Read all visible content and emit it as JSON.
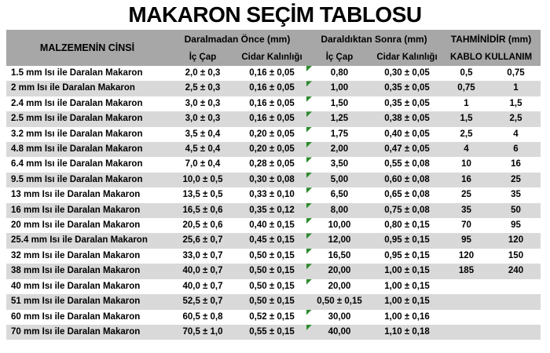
{
  "title": "MAKARON SEÇİM TABLOSU",
  "colors": {
    "header_bg": "#a7a7a7",
    "stripe_bg": "#d9d9d9",
    "flag_green": "#2d8c2d",
    "text": "#000000"
  },
  "header": {
    "material": "MALZEMENİN CİNSİ",
    "before": {
      "label": "Daralmadan Önce (mm)",
      "ic": "İç Çap",
      "cidar": "Cidar Kalınlığı"
    },
    "after": {
      "label": "Daraldıktan Sonra (mm)",
      "ic": "İç Çap",
      "cidar": "Cidar Kalınlığı"
    },
    "estimate": {
      "line1": "TAHMİNİDİR (mm)",
      "line2": "KABLO KULLANIM"
    }
  },
  "rows": [
    {
      "name": "1.5 mm Isı ile Daralan Makaron",
      "ic_once": "2,0 ± 0,3",
      "cidar_once": "0,16 ± 0,05",
      "ic_sonra": "0,80",
      "cidar_sonra": "0,30 ± 0,05",
      "kablo1": "0,5",
      "kablo2": "0,75",
      "marker": true
    },
    {
      "name": "2 mm Isı ile Daralan Makaron",
      "ic_once": "2,5 ± 0,3",
      "cidar_once": "0,16 ± 0,05",
      "ic_sonra": "1,00",
      "cidar_sonra": "0,35 ± 0,05",
      "kablo1": "0,75",
      "kablo2": "1",
      "marker": true
    },
    {
      "name": "2.4 mm Isı ile Daralan Makaron",
      "ic_once": "3,0 ± 0,3",
      "cidar_once": "0,16 ± 0,05",
      "ic_sonra": "1,50",
      "cidar_sonra": "0,35 ± 0,05",
      "kablo1": "1",
      "kablo2": "1,5",
      "marker": true
    },
    {
      "name": "2.5 mm Isı ile Daralan Makaron",
      "ic_once": "3,0 ± 0,3",
      "cidar_once": "0,16 ± 0,05",
      "ic_sonra": "1,25",
      "cidar_sonra": "0,38 ± 0,05",
      "kablo1": "1,5",
      "kablo2": "2,5",
      "marker": true
    },
    {
      "name": "3.2 mm Isı ile Daralan Makaron",
      "ic_once": "3,5 ± 0,4",
      "cidar_once": "0,20 ± 0,05",
      "ic_sonra": "1,75",
      "cidar_sonra": "0,40 ± 0,05",
      "kablo1": "2,5",
      "kablo2": "4",
      "marker": true
    },
    {
      "name": "4.8 mm Isı ile Daralan Makaron",
      "ic_once": "4,5 ± 0,4",
      "cidar_once": "0,20 ± 0,05",
      "ic_sonra": "2,00",
      "cidar_sonra": "0,47 ± 0,05",
      "kablo1": "4",
      "kablo2": "6",
      "marker": true
    },
    {
      "name": "6.4 mm Isı ile Daralan Makaron",
      "ic_once": "7,0 ± 0,4",
      "cidar_once": "0,28 ± 0,05",
      "ic_sonra": "3,50",
      "cidar_sonra": "0,55 ± 0,08",
      "kablo1": "10",
      "kablo2": "16",
      "marker": true
    },
    {
      "name": "9.5 mm Isı ile Daralan Makaron",
      "ic_once": "10,0 ± 0,5",
      "cidar_once": "0,30 ± 0,08",
      "ic_sonra": "5,00",
      "cidar_sonra": "0,60 ± 0,08",
      "kablo1": "16",
      "kablo2": "25",
      "marker": true
    },
    {
      "name": "13 mm Isı ile Daralan Makaron",
      "ic_once": "13,5 ± 0,5",
      "cidar_once": "0,33 ± 0,10",
      "ic_sonra": "6,50",
      "cidar_sonra": "0,65 ± 0,08",
      "kablo1": "25",
      "kablo2": "35",
      "marker": true
    },
    {
      "name": "16 mm Isı ile Daralan Makaron",
      "ic_once": "16,5 ± 0,6",
      "cidar_once": "0,35 ± 0,12",
      "ic_sonra": "8,00",
      "cidar_sonra": "0,75 ± 0,08",
      "kablo1": "35",
      "kablo2": "50",
      "marker": true
    },
    {
      "name": "20 mm Isı ile Daralan Makaron",
      "ic_once": "20,5 ± 0,6",
      "cidar_once": "0,40 ± 0,15",
      "ic_sonra": "10,00",
      "cidar_sonra": "0,80 ± 0,15",
      "kablo1": "70",
      "kablo2": "95",
      "marker": true
    },
    {
      "name": "25.4 mm Isı ile Daralan Makaron",
      "ic_once": "25,6 ± 0,7",
      "cidar_once": "0,45 ± 0,15",
      "ic_sonra": "12,00",
      "cidar_sonra": "0,95 ± 0,15",
      "kablo1": "95",
      "kablo2": "120",
      "marker": true
    },
    {
      "name": "32 mm Isı ile Daralan Makaron",
      "ic_once": "33,0 ± 0,7",
      "cidar_once": "0,50 ± 0,15",
      "ic_sonra": "16,50",
      "cidar_sonra": "0,95 ± 0,15",
      "kablo1": "120",
      "kablo2": "150",
      "marker": true
    },
    {
      "name": "38 mm Isı ile Daralan Makaron",
      "ic_once": "40,0 ± 0,7",
      "cidar_once": "0,50 ± 0,15",
      "ic_sonra": "20,00",
      "cidar_sonra": "1,00 ± 0,15",
      "kablo1": "185",
      "kablo2": "240",
      "marker": true
    },
    {
      "name": "40 mm Isı ile Daralan Makaron",
      "ic_once": "40,0 ± 0,7",
      "cidar_once": "0,50 ± 0,15",
      "ic_sonra": "20,00",
      "cidar_sonra": "1,00 ± 0,15",
      "kablo1": "",
      "kablo2": "",
      "marker": true
    },
    {
      "name": "51 mm Isı ile Daralan Makaron",
      "ic_once": "52,5 ± 0,7",
      "cidar_once": "0,50 ± 0,15",
      "ic_sonra": "0,50 ± 0,15",
      "cidar_sonra": "1,00 ± 0,15",
      "kablo1": "",
      "kablo2": "",
      "marker": false
    },
    {
      "name": "60 mm Isı ile Daralan Makaron",
      "ic_once": "60,5 ± 0,8",
      "cidar_once": "0,52 ± 0,15",
      "ic_sonra": "30,00",
      "cidar_sonra": "1,00 ± 0,16",
      "kablo1": "",
      "kablo2": "",
      "marker": true
    },
    {
      "name": "70 mm Isı ile Daralan Makaron",
      "ic_once": "70,5 ± 1,0",
      "cidar_once": "0,55 ± 0,15",
      "ic_sonra": "40,00",
      "cidar_sonra": "1,10 ± 0,18",
      "kablo1": "",
      "kablo2": "",
      "marker": true
    }
  ]
}
